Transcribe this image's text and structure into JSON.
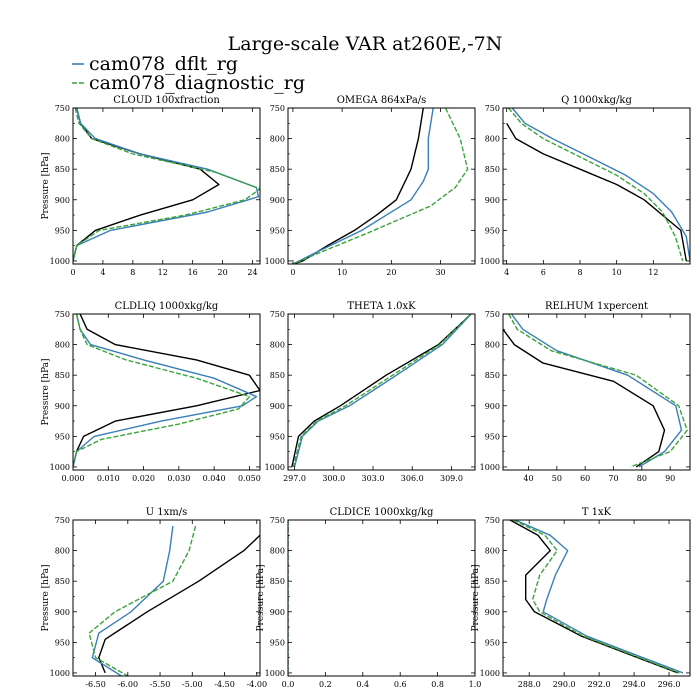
{
  "figure": {
    "title": "Large-scale VAR at260E,-7N"
  },
  "legend": [
    {
      "label": "cam078_dflt_rg",
      "color": "#3a7fb8",
      "dash": ""
    },
    {
      "label": "cam078_diagnostic_rg",
      "color": "#3aa43a",
      "dash": "5,2"
    }
  ],
  "series_colors": {
    "obs": "#000000",
    "dflt": "#3a7fb8",
    "diag": "#3aa43a"
  },
  "chart_data": [
    {
      "type": "line",
      "title": "CLOUD  100xfraction",
      "xlabel": "",
      "ylabel": "Pressure [hPa]",
      "xlim": [
        0,
        25
      ],
      "ylim": [
        750,
        1005
      ],
      "xticks": [
        0,
        4,
        8,
        12,
        16,
        20,
        24
      ],
      "xtick_labels": [
        "0",
        "4",
        "8",
        "12",
        "16",
        "20",
        "24"
      ],
      "yticks": [
        750,
        800,
        850,
        900,
        950,
        1000
      ],
      "ytick_labels": [
        "750",
        "800",
        "850",
        "900",
        "950",
        "1000"
      ],
      "series": [
        {
          "key": "obs",
          "x": [
            0.5,
            1,
            2.5,
            9,
            17,
            19.5,
            16,
            9,
            3,
            0.5,
            0
          ],
          "y": [
            750,
            775,
            800,
            825,
            850,
            875,
            900,
            925,
            950,
            975,
            1000
          ]
        },
        {
          "key": "dflt",
          "x": [
            0.5,
            1,
            3,
            9,
            18,
            24.5,
            24.8,
            18,
            5,
            0.5,
            0
          ],
          "y": [
            750,
            775,
            800,
            825,
            850,
            880,
            895,
            920,
            950,
            975,
            1000
          ]
        },
        {
          "key": "diag",
          "x": [
            0.3,
            0.8,
            2.5,
            8,
            19,
            25,
            23,
            15,
            3.5,
            0.5,
            0
          ],
          "y": [
            750,
            775,
            800,
            825,
            855,
            882,
            900,
            925,
            950,
            975,
            1000
          ]
        }
      ]
    },
    {
      "type": "line",
      "title": "OMEGA  864xPa/s",
      "xlabel": "",
      "ylabel": "",
      "xlim": [
        -1,
        37
      ],
      "ylim": [
        750,
        1005
      ],
      "xticks": [
        0,
        10,
        20,
        30
      ],
      "xtick_labels": [
        "0",
        "10",
        "20",
        "30"
      ],
      "yticks": [
        750,
        800,
        850,
        900,
        950,
        1000
      ],
      "ytick_labels": [
        "750",
        "800",
        "850",
        "900",
        "950",
        "1000"
      ],
      "series": [
        {
          "key": "obs",
          "x": [
            26.5,
            25.5,
            24,
            21,
            17,
            12.5,
            7,
            2,
            0
          ],
          "y": [
            750,
            800,
            850,
            900,
            925,
            950,
            975,
            1000,
            1005
          ]
        },
        {
          "key": "dflt",
          "x": [
            28.5,
            27.5,
            27.5,
            26.5,
            24,
            14,
            5,
            0
          ],
          "y": [
            750,
            800,
            850,
            870,
            900,
            950,
            985,
            1005
          ]
        },
        {
          "key": "diag",
          "x": [
            31,
            34,
            35.5,
            33,
            28,
            15,
            5,
            0
          ],
          "y": [
            750,
            800,
            850,
            880,
            910,
            955,
            988,
            1005
          ]
        }
      ]
    },
    {
      "type": "line",
      "title": "Q  1000xkg/kg",
      "xlabel": "",
      "ylabel": "",
      "xlim": [
        3.8,
        14
      ],
      "ylim": [
        750,
        1005
      ],
      "xticks": [
        4,
        6,
        8,
        10,
        12
      ],
      "xtick_labels": [
        "4",
        "6",
        "8",
        "10",
        "12"
      ],
      "yticks": [
        750,
        800,
        850,
        900,
        950,
        1000
      ],
      "ytick_labels": [
        "750",
        "800",
        "850",
        "900",
        "950",
        "1000"
      ],
      "series": [
        {
          "key": "obs",
          "x": [
            4.0,
            4.5,
            6,
            8,
            10,
            11.5,
            12.5,
            13.5,
            13.8
          ],
          "y": [
            775,
            800,
            825,
            850,
            875,
            900,
            925,
            950,
            1000
          ]
        },
        {
          "key": "dflt",
          "x": [
            4.3,
            5,
            6.5,
            8.5,
            10.5,
            12,
            13,
            13.8,
            14
          ],
          "y": [
            750,
            775,
            800,
            830,
            860,
            890,
            920,
            960,
            1000
          ]
        },
        {
          "key": "diag",
          "x": [
            4.1,
            4.8,
            6,
            8,
            10,
            11.5,
            12.5,
            13.2,
            13.6
          ],
          "y": [
            750,
            775,
            800,
            830,
            860,
            890,
            920,
            960,
            1000
          ]
        }
      ]
    },
    {
      "type": "line",
      "title": "CLDLIQ  1000xkg/kg",
      "xlabel": "",
      "ylabel": "Pressure [hPa]",
      "xlim": [
        0,
        0.053
      ],
      "ylim": [
        750,
        1005
      ],
      "xticks": [
        0,
        0.01,
        0.02,
        0.03,
        0.04,
        0.05
      ],
      "xtick_labels": [
        "0.000",
        "0.010",
        "0.020",
        "0.030",
        "0.040",
        "0.050"
      ],
      "yticks": [
        750,
        800,
        850,
        900,
        950,
        1000
      ],
      "ytick_labels": [
        "750",
        "800",
        "850",
        "900",
        "950",
        "1000"
      ],
      "series": [
        {
          "key": "obs",
          "x": [
            0.002,
            0.004,
            0.012,
            0.035,
            0.05,
            0.053,
            0.035,
            0.012,
            0.003,
            0.001,
            0
          ],
          "y": [
            750,
            775,
            800,
            825,
            850,
            875,
            900,
            925,
            950,
            975,
            1000
          ]
        },
        {
          "key": "dflt",
          "x": [
            0.001,
            0.002,
            0.005,
            0.02,
            0.04,
            0.052,
            0.048,
            0.025,
            0.006,
            0.001,
            0
          ],
          "y": [
            750,
            775,
            800,
            825,
            855,
            885,
            900,
            925,
            950,
            975,
            1000
          ]
        },
        {
          "key": "diag",
          "x": [
            0.001,
            0.002,
            0.004,
            0.015,
            0.035,
            0.05,
            0.047,
            0.03,
            0.008,
            0.001,
            0
          ],
          "y": [
            750,
            775,
            800,
            825,
            855,
            885,
            905,
            930,
            955,
            975,
            1000
          ]
        }
      ]
    },
    {
      "type": "line",
      "title": "THETA  1.0xK",
      "xlabel": "",
      "ylabel": "",
      "xlim": [
        296.5,
        310.8
      ],
      "ylim": [
        750,
        1005
      ],
      "xticks": [
        297,
        300,
        303,
        306,
        309
      ],
      "xtick_labels": [
        "297.0",
        "300.0",
        "303.0",
        "306.0",
        "309.0"
      ],
      "yticks": [
        750,
        800,
        850,
        900,
        950,
        1000
      ],
      "ytick_labels": [
        "750",
        "800",
        "850",
        "900",
        "950",
        "1000"
      ],
      "series": [
        {
          "key": "obs",
          "x": [
            310.5,
            308,
            304,
            300.5,
            298.5,
            297.3,
            296.8
          ],
          "y": [
            750,
            800,
            850,
            900,
            925,
            950,
            1000
          ]
        },
        {
          "key": "dflt",
          "x": [
            310.5,
            308.3,
            304.8,
            301.2,
            298.8,
            297.6,
            297.0
          ],
          "y": [
            750,
            800,
            850,
            900,
            925,
            950,
            1000
          ]
        },
        {
          "key": "diag",
          "x": [
            310.5,
            308.1,
            304.5,
            300.9,
            298.7,
            297.5,
            296.9
          ],
          "y": [
            750,
            800,
            850,
            900,
            925,
            950,
            1000
          ]
        }
      ]
    },
    {
      "type": "line",
      "title": "RELHUM  1xpercent",
      "xlabel": "",
      "ylabel": "",
      "xlim": [
        31,
        97
      ],
      "ylim": [
        750,
        1005
      ],
      "xticks": [
        40,
        50,
        60,
        70,
        80,
        90
      ],
      "xtick_labels": [
        "40",
        "50",
        "60",
        "70",
        "80",
        "90"
      ],
      "yticks": [
        750,
        800,
        850,
        900,
        950,
        1000
      ],
      "ytick_labels": [
        "750",
        "800",
        "850",
        "900",
        "950",
        "1000"
      ],
      "series": [
        {
          "key": "obs",
          "x": [
            31,
            35,
            45,
            70,
            84,
            88,
            86,
            78
          ],
          "y": [
            775,
            800,
            830,
            860,
            900,
            940,
            975,
            1000
          ]
        },
        {
          "key": "dflt",
          "x": [
            34,
            38,
            50,
            75,
            92,
            94,
            88,
            79
          ],
          "y": [
            750,
            775,
            810,
            850,
            900,
            940,
            975,
            1000
          ]
        },
        {
          "key": "diag",
          "x": [
            33,
            36,
            48,
            78,
            93,
            96,
            90,
            76
          ],
          "y": [
            750,
            775,
            810,
            850,
            900,
            940,
            975,
            1000
          ]
        }
      ]
    },
    {
      "type": "line",
      "title": "U  1xm/s",
      "xlabel": "",
      "ylabel": "Pressure [hPa]",
      "xlim": [
        -6.85,
        -3.95
      ],
      "ylim": [
        750,
        1005
      ],
      "xticks": [
        -6.5,
        -6,
        -5.5,
        -5,
        -4.5,
        -4
      ],
      "xtick_labels": [
        "-6.50",
        "-6.00",
        "-5.50",
        "-5.00",
        "-4.50",
        "-4.00"
      ],
      "yticks": [
        750,
        800,
        850,
        900,
        950,
        1000
      ],
      "ytick_labels": [
        "750",
        "800",
        "850",
        "900",
        "950",
        "1000"
      ],
      "series": [
        {
          "key": "obs",
          "x": [
            -3.95,
            -4.2,
            -4.9,
            -5.7,
            -6.35,
            -6.45,
            -6.35
          ],
          "y": [
            775,
            800,
            850,
            900,
            945,
            975,
            1000
          ]
        },
        {
          "key": "dflt",
          "x": [
            -5.3,
            -5.35,
            -5.45,
            -5.95,
            -6.45,
            -6.55,
            -6.1
          ],
          "y": [
            760,
            800,
            850,
            900,
            935,
            975,
            1005
          ]
        },
        {
          "key": "diag",
          "x": [
            -4.95,
            -5.05,
            -5.3,
            -6.2,
            -6.6,
            -6.5,
            -6.0
          ],
          "y": [
            760,
            800,
            850,
            900,
            935,
            975,
            1005
          ]
        }
      ]
    },
    {
      "type": "line",
      "title": "CLDICE  1000xkg/kg",
      "xlabel": "",
      "ylabel": "Pressure [hPa]",
      "xlim": [
        0,
        1
      ],
      "ylim": [
        750,
        1005
      ],
      "xticks": [
        0,
        0.2,
        0.4,
        0.6,
        0.8,
        1.0
      ],
      "xtick_labels": [
        "0.0",
        "0.2",
        "0.4",
        "0.6",
        "0.8",
        "1.0"
      ],
      "yticks": [
        750,
        800,
        850,
        900,
        950,
        1000
      ],
      "ytick_labels": [
        "750",
        "800",
        "850",
        "900",
        "950",
        "1000"
      ],
      "series": [
        {
          "key": "diag",
          "x": [
            0,
            0
          ],
          "y": [
            750,
            1005
          ]
        }
      ]
    },
    {
      "type": "line",
      "title": "T  1xK",
      "xlabel": "",
      "ylabel": "Pressure [hPa]",
      "xlim": [
        286.5,
        297.2
      ],
      "ylim": [
        750,
        1005
      ],
      "xticks": [
        288,
        290,
        292,
        294,
        296
      ],
      "xtick_labels": [
        "288.0",
        "290.0",
        "292.0",
        "294.0",
        "296.0"
      ],
      "yticks": [
        750,
        800,
        850,
        900,
        950,
        1000
      ],
      "ytick_labels": [
        "750",
        "800",
        "850",
        "900",
        "950",
        "1000"
      ],
      "series": [
        {
          "key": "obs",
          "x": [
            286.9,
            288.5,
            289.2,
            287.8,
            287.8,
            288.3,
            291,
            296.5
          ],
          "y": [
            750,
            775,
            800,
            840,
            880,
            900,
            940,
            1000
          ]
        },
        {
          "key": "dflt",
          "x": [
            287.2,
            289.2,
            290.2,
            289.5,
            289,
            288.8,
            291.3,
            296.8
          ],
          "y": [
            750,
            775,
            800,
            840,
            880,
            900,
            940,
            1000
          ]
        },
        {
          "key": "diag",
          "x": [
            287.1,
            288.9,
            289.6,
            288.6,
            288.2,
            288.6,
            291.1,
            296.6
          ],
          "y": [
            750,
            775,
            800,
            840,
            880,
            900,
            940,
            1000
          ]
        }
      ]
    }
  ]
}
